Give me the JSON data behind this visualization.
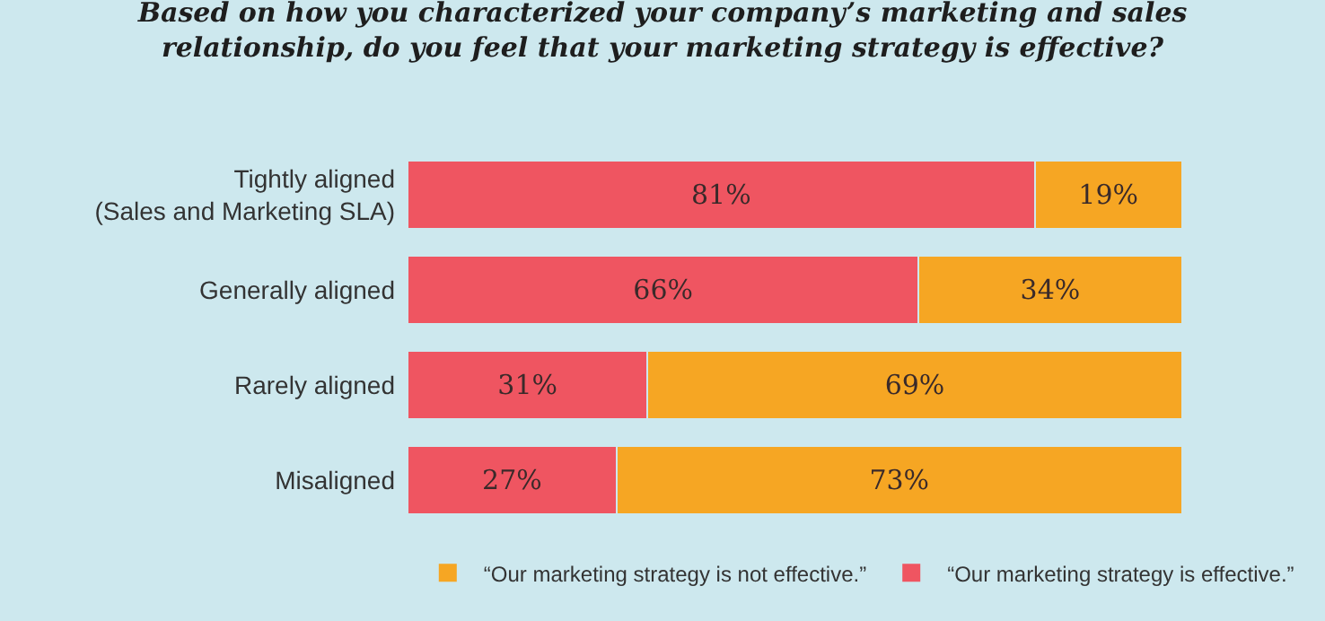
{
  "chart_data": {
    "type": "bar",
    "orientation": "horizontal",
    "stacked": true,
    "title": "Based on how you characterized your company’s marketing and sales relationship, do you feel that your marketing strategy is effective?",
    "categories": [
      "Tightly aligned\n(Sales and Marketing SLA)",
      "Generally aligned",
      "Rarely aligned",
      "Misaligned"
    ],
    "series": [
      {
        "name": "“Our marketing strategy is effective.”",
        "color": "#ef5561",
        "values": [
          81,
          66,
          31,
          27
        ],
        "value_labels": [
          "81%",
          "66%",
          "31%",
          "27%"
        ]
      },
      {
        "name": "“Our marketing strategy is not effective.”",
        "color": "#f6a623",
        "values": [
          19,
          34,
          69,
          73
        ],
        "value_labels": [
          "19%",
          "34%",
          "69%",
          "73%"
        ]
      }
    ],
    "legend": "bottom right"
  }
}
